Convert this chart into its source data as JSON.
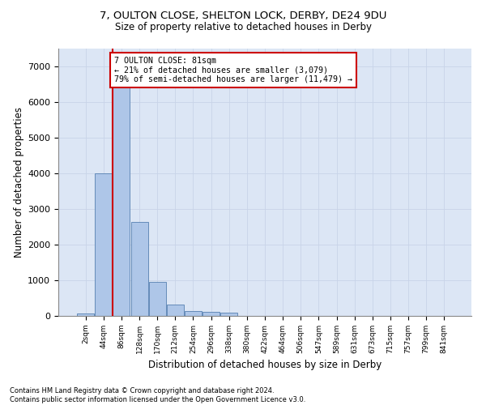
{
  "title1": "7, OULTON CLOSE, SHELTON LOCK, DERBY, DE24 9DU",
  "title2": "Size of property relative to detached houses in Derby",
  "xlabel": "Distribution of detached houses by size in Derby",
  "ylabel": "Number of detached properties",
  "footnote": "Contains HM Land Registry data © Crown copyright and database right 2024.\nContains public sector information licensed under the Open Government Licence v3.0.",
  "bin_labels": [
    "2sqm",
    "44sqm",
    "86sqm",
    "128sqm",
    "170sqm",
    "212sqm",
    "254sqm",
    "296sqm",
    "338sqm",
    "380sqm",
    "422sqm",
    "464sqm",
    "506sqm",
    "547sqm",
    "589sqm",
    "631sqm",
    "673sqm",
    "715sqm",
    "757sqm",
    "799sqm",
    "841sqm"
  ],
  "bar_values": [
    75,
    3990,
    6570,
    2630,
    960,
    310,
    130,
    120,
    80,
    0,
    0,
    0,
    0,
    0,
    0,
    0,
    0,
    0,
    0,
    0,
    0
  ],
  "bar_color": "#aec6e8",
  "bar_edge_color": "#5580b0",
  "grid_color": "#c8d4e8",
  "background_color": "#dce6f5",
  "vline_color": "#cc0000",
  "annotation_box_color": "#cc0000",
  "ylim_max": 7500,
  "yticks": [
    0,
    1000,
    2000,
    3000,
    4000,
    5000,
    6000,
    7000
  ],
  "annotation_text_line1": "7 OULTON CLOSE: 81sqm",
  "annotation_text_line2": "← 21% of detached houses are smaller (3,079)",
  "annotation_text_line3": "79% of semi-detached houses are larger (11,479) →"
}
